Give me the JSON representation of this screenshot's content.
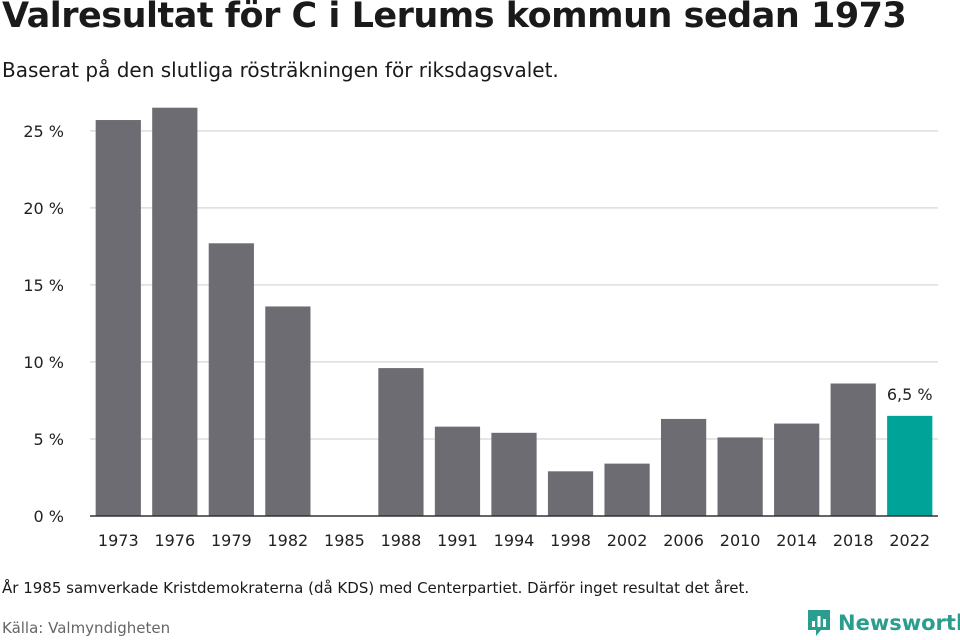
{
  "header": {
    "title": "Valresultat för C i Lerums kommun sedan 1973",
    "subtitle": "Baserat på den slutliga rösträkningen för riksdagsvalet."
  },
  "footer": {
    "note": "År 1985 samverkade Kristdemokraterna (då KDS) med Centerpartiet. Därför inget resultat det året.",
    "source": "Källa: Valmyndigheten",
    "brand": "Newsworthy"
  },
  "colors": {
    "bar": "#6d6c72",
    "highlight": "#00a398",
    "grid": "#dddddd",
    "axis": "#333333",
    "brand": "#2a9d8f"
  },
  "chart_data": {
    "type": "bar",
    "title": "Valresultat för C i Lerums kommun sedan 1973",
    "subtitle": "Baserat på den slutliga rösträkningen för riksdagsvalet.",
    "categories": [
      "1973",
      "1976",
      "1979",
      "1982",
      "1985",
      "1988",
      "1991",
      "1994",
      "1998",
      "2002",
      "2006",
      "2010",
      "2014",
      "2018",
      "2022"
    ],
    "values": [
      25.7,
      26.5,
      17.7,
      13.6,
      null,
      9.6,
      5.8,
      5.4,
      2.9,
      3.4,
      6.3,
      5.1,
      6.0,
      8.6,
      6.5
    ],
    "highlight_category": "2022",
    "data_labels": [
      {
        "category": "2022",
        "text": "6,5 %"
      }
    ],
    "yticks": [
      0,
      5,
      10,
      15,
      20,
      25
    ],
    "ytick_labels": [
      "0 %",
      "5 %",
      "10 %",
      "15 %",
      "20 %",
      "25 %"
    ],
    "ylim": [
      0,
      27
    ],
    "xlabel": "",
    "ylabel": "",
    "grid": true,
    "legend": "none"
  }
}
